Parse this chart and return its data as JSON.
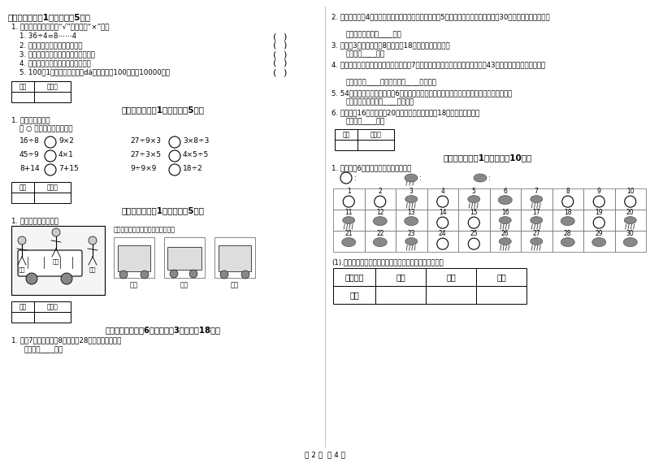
{
  "page_bg": "#ffffff",
  "section5_intro": "1. 我会判断。（对的画“√”，错的画“×”）。",
  "section5_items": [
    "1. 36÷4=8⋯⋯4",
    "2. 读数和写数时，都从低位起。",
    "3. 长方形和正方形的四个角都是直角。",
    "4. 对边相等的四边形一定是长方形。",
    "5. 100彔1元纸币折叠一沓（dá），这样的100沓就是10000元。"
  ],
  "section6_sub": "在 ○ 里填上＞、＜或＝。",
  "section6_items_left": [
    [
      "16÷8",
      "9×2"
    ],
    [
      "45÷9",
      "4×1"
    ],
    [
      "8+14",
      "7+15"
    ]
  ],
  "section6_items_right": [
    [
      "27÷9×3",
      "3×8÷3"
    ],
    [
      "27÷3×5",
      "4×5÷5"
    ],
    [
      "9÷9×9",
      "18÷2"
    ]
  ],
  "section7_intro": "1. 观察物体，连一连。",
  "section7_right_text": "请你连一连，下面分别是谁看到的？",
  "section7_names": [
    "小红",
    "小东",
    "小明"
  ],
  "section8_q1": "1. 商帉7盒钒笔，每盒8支，卖了28支，还剩多少支？",
  "section8_a1": "答：还剩____支。",
  "q2": "2. 周日，小明和4个同学去公园玩，公园的儿童票是每典5元，他们一共花了多少元？匀30元去，买票的錢够吗？",
  "a2": "答：他们一共花了____元。",
  "q3": "3. 食堂运3车大米，每车8袋，吃掀18袋后，还剩多少袋？",
  "a3": "答：还剩____袋。",
  "q4": "4. 操场上有一排学生又来了男生、女生呴7人，新来了多少学生？现在操场上共有43个学生原来有多少个学生？",
  "a4": "答：新来了____学生，原来有____个学生。",
  "q5": "5. 54名同学租车去春游，租了6辆车，每辆车上正好有一名老师，平均每辆车上有几名学生？",
  "a5": "答：平均每辆车上有____名学生。",
  "q6": "6. 同学们偘16只红风车，20只花风车，送给幼儿园18只，还有多少只？",
  "a6": "答：还有____只。",
  "section10_q1": "1. 气象小组6月份的天气作了如下记录。",
  "weather_types": [
    1,
    1,
    2,
    1,
    2,
    3,
    2,
    1,
    1,
    1,
    2,
    3,
    3,
    1,
    1,
    2,
    2,
    3,
    1,
    2,
    3,
    3,
    2,
    1,
    1,
    2,
    2,
    3,
    3,
    3
  ],
  "weather_numbers": [
    1,
    2,
    3,
    4,
    5,
    6,
    7,
    8,
    9,
    10,
    11,
    12,
    13,
    14,
    15,
    16,
    17,
    18,
    19,
    20,
    21,
    22,
    23,
    24,
    25,
    26,
    27,
    28,
    29,
    30
  ],
  "table_header": "(1).把晴天、雨天、阴天的天数分别填在下面的统计表中。",
  "table_cols": [
    "天气名称",
    "晴天",
    "雨天",
    "阴天"
  ],
  "table_row": "天数",
  "footer_text": "第 2 页  共 4 页"
}
